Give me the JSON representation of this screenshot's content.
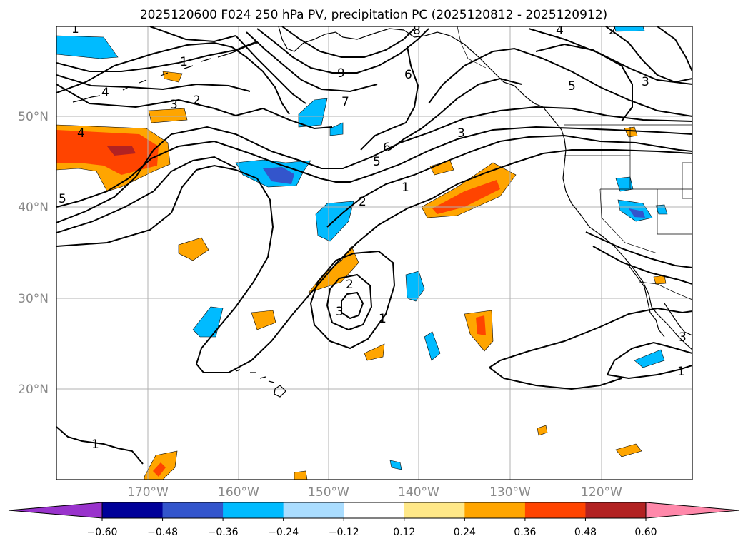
{
  "title": "2025120600 F024 250 hPa PV, precipitation PC (2025120812 - 2025120912)",
  "latitude_labels": [
    "50°N",
    "40°N",
    "30°N",
    "20°N"
  ],
  "longitude_labels": [
    "170°W",
    "160°W",
    "150°W",
    "140°W",
    "130°W",
    "120°W"
  ],
  "colorbar": {
    "tick_labels": [
      "−0.60",
      "−0.48",
      "−0.36",
      "−0.24",
      "−0.12",
      "0.12",
      "0.24",
      "0.36",
      "0.48",
      "0.60"
    ],
    "colors": {
      "below": "#9933cc",
      "bins": [
        "#000099",
        "#3355cc",
        "#00bbff",
        "#aaddff",
        "#ffffff",
        "#ffe888",
        "#ffa500",
        "#ff4400",
        "#b22222"
      ],
      "above": "#ff88aa"
    }
  },
  "contour_labels": [
    "1",
    "1",
    "4",
    "3",
    "2",
    "4",
    "5",
    "8",
    "9",
    "6",
    "7",
    "6",
    "5",
    "3",
    "1",
    "2",
    "4",
    "2",
    "5",
    "3",
    "3",
    "2",
    "1",
    "1",
    "1",
    "3"
  ]
}
